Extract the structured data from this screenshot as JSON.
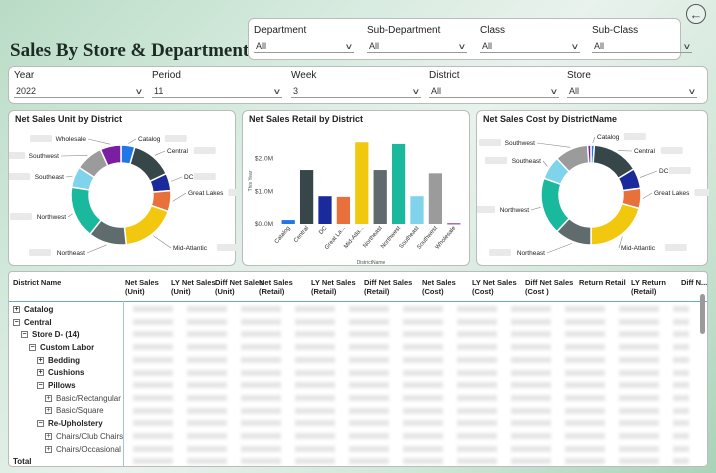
{
  "header": {
    "title": "Sales By Store & Department",
    "back_icon": "←"
  },
  "filters_top": [
    {
      "label": "Department",
      "value": "All"
    },
    {
      "label": "Sub-Department",
      "value": "All"
    },
    {
      "label": "Class",
      "value": "All"
    },
    {
      "label": "Sub-Class",
      "value": "All"
    }
  ],
  "filters_row": [
    {
      "label": "Year",
      "value": "2022"
    },
    {
      "label": "Period",
      "value": "11"
    },
    {
      "label": "Week",
      "value": "3"
    },
    {
      "label": "District",
      "value": "All"
    },
    {
      "label": "Store",
      "value": "All"
    }
  ],
  "colors": {
    "Catalog": "#1f77e8",
    "Central": "#374649",
    "DC": "#1b2a9a",
    "Great Lakes": "#e8703a",
    "Mid-Atlantic": "#f2c80f",
    "Northeast": "#5f6b6d",
    "Northwest": "#1ab89c",
    "Southeast": "#7fd3ea",
    "Southwest": "#9b9b9b",
    "Wholesale": "#7a1fa2"
  },
  "chart_data": [
    {
      "type": "pie",
      "title": "Net Sales Unit by District",
      "labels": [
        "Catalog",
        "Central",
        "DC",
        "Great Lakes",
        "Mid-Atlantic",
        "Northeast",
        "Northwest",
        "Southeast",
        "Southwest",
        "Wholesale"
      ],
      "values": [
        4,
        12,
        5,
        6,
        16,
        11,
        15,
        6,
        8,
        6
      ]
    },
    {
      "type": "bar",
      "title": "Net Sales Retail by District",
      "categories": [
        "Catalog",
        "Central",
        "DC",
        "Great La...",
        "Mid-Atla...",
        "Northeast",
        "Northwest",
        "Southeast",
        "Southwest",
        "Wholesale"
      ],
      "values": [
        0.12,
        1.65,
        0.85,
        0.83,
        2.5,
        1.65,
        2.45,
        0.85,
        1.55,
        0.02
      ],
      "xlabel": "DistrictName",
      "ylabel": "This Year",
      "yticks": [
        "$2.0M",
        "$1.0M",
        "$0.0M"
      ],
      "ylim": [
        0,
        2.6
      ]
    },
    {
      "type": "pie",
      "title": "Net Sales Cost by DistrictName",
      "labels": [
        "Catalog",
        "Central",
        "DC",
        "Great Lakes",
        "Mid-Atlantic",
        "Northeast",
        "Northwest",
        "Southeast",
        "Southwest",
        "Wholesale"
      ],
      "values": [
        1,
        14,
        6,
        6,
        19,
        11,
        17,
        7,
        10,
        1
      ]
    }
  ],
  "table": {
    "columns": [
      "District Name",
      "Net Sales (Unit)",
      "LY Net Sales (Unit)",
      "Diff Net Sales (Unit)",
      "Net Sales (Retail)",
      "LY Net Sales (Retail)",
      "Diff Net Sales (Retail)",
      "Net Sales (Cost)",
      "LY Net Sales (Cost)",
      "Diff Net Sales (Cost )",
      "Return Retail",
      "LY Return (Retail)",
      "Diff N..."
    ],
    "rows": [
      {
        "label": "Catalog",
        "level": 0,
        "exp": "+",
        "bold": true
      },
      {
        "label": "Central",
        "level": 0,
        "exp": "−",
        "bold": true
      },
      {
        "label": "Store D- (14)",
        "level": 1,
        "exp": "−",
        "bold": true
      },
      {
        "label": "Custom Labor",
        "level": 2,
        "exp": "−",
        "bold": true
      },
      {
        "label": "Bedding",
        "level": 3,
        "exp": "+",
        "bold": true
      },
      {
        "label": "Cushions",
        "level": 3,
        "exp": "+",
        "bold": true
      },
      {
        "label": "Pillows",
        "level": 3,
        "exp": "−",
        "bold": true
      },
      {
        "label": "Basic/Rectangular",
        "level": 4,
        "exp": "+",
        "bold": false
      },
      {
        "label": "Basic/Square",
        "level": 4,
        "exp": "+",
        "bold": false
      },
      {
        "label": "Re-Upholstery",
        "level": 3,
        "exp": "−",
        "bold": true
      },
      {
        "label": "Chairs/Club Chairs",
        "level": 4,
        "exp": "+",
        "bold": false
      },
      {
        "label": "Chairs/Occasional",
        "level": 4,
        "exp": "+",
        "bold": false
      },
      {
        "label": "Total",
        "level": 0,
        "exp": "",
        "bold": true
      }
    ]
  }
}
